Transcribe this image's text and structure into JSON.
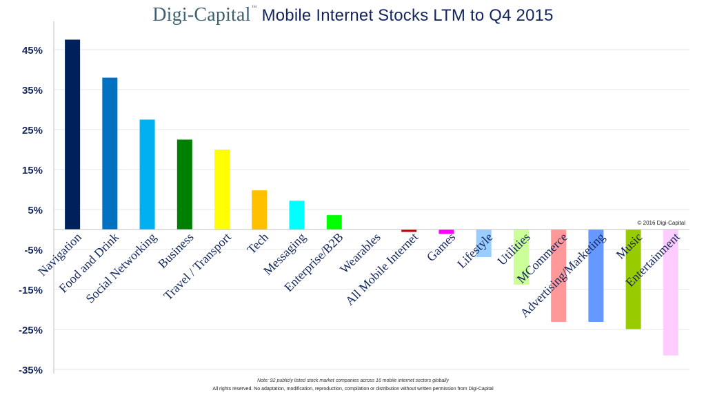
{
  "header": {
    "brand": "Digi-Capital",
    "brand_mark": "™",
    "title": "Mobile Internet Stocks LTM to Q4 2015"
  },
  "copyright": "© 2016 Digi-Capital",
  "footer": {
    "note": "Note: 92 publicly listed stock market companies across 16 mobile internet sectors globally",
    "rights": "All rights reserved. No adaptation, modification, reproduction, compilation or distribution without written permission from Digi-Capital"
  },
  "chart_data": {
    "type": "bar",
    "title": "Mobile Internet Stocks LTM to Q4 2015",
    "xlabel": "",
    "ylabel": "",
    "ylim": [
      -35,
      50
    ],
    "yticks": [
      "-35%",
      "-25%",
      "-15%",
      "-5%",
      "5%",
      "15%",
      "25%",
      "35%",
      "45%"
    ],
    "grid": true,
    "categories": [
      "Navigation",
      "Food and Drink",
      "Social Networking",
      "Business",
      "Travel / Transport",
      "Tech",
      "Messaging",
      "Enterprise/B2B",
      "Wearables",
      "All Mobile Internet",
      "Games",
      "Lifestyle",
      "Utilities",
      "MCommerce",
      "Advertising/Marketing",
      "Music",
      "Entertainment"
    ],
    "values": [
      47.5,
      38,
      27.5,
      22.5,
      20,
      9.8,
      7.2,
      3.6,
      0,
      -0.6,
      -1.1,
      -6.9,
      -13.8,
      -23.1,
      -23.1,
      -24.9,
      -31.5
    ],
    "colors": [
      "#00205b",
      "#0070c0",
      "#00b0f0",
      "#008000",
      "#ffff00",
      "#ffc000",
      "#00ffff",
      "#00ff00",
      "#d9d9d9",
      "#c00000",
      "#ff00ff",
      "#99ccff",
      "#ccff99",
      "#ff9999",
      "#6699ff",
      "#99cc00",
      "#ffccff"
    ]
  }
}
